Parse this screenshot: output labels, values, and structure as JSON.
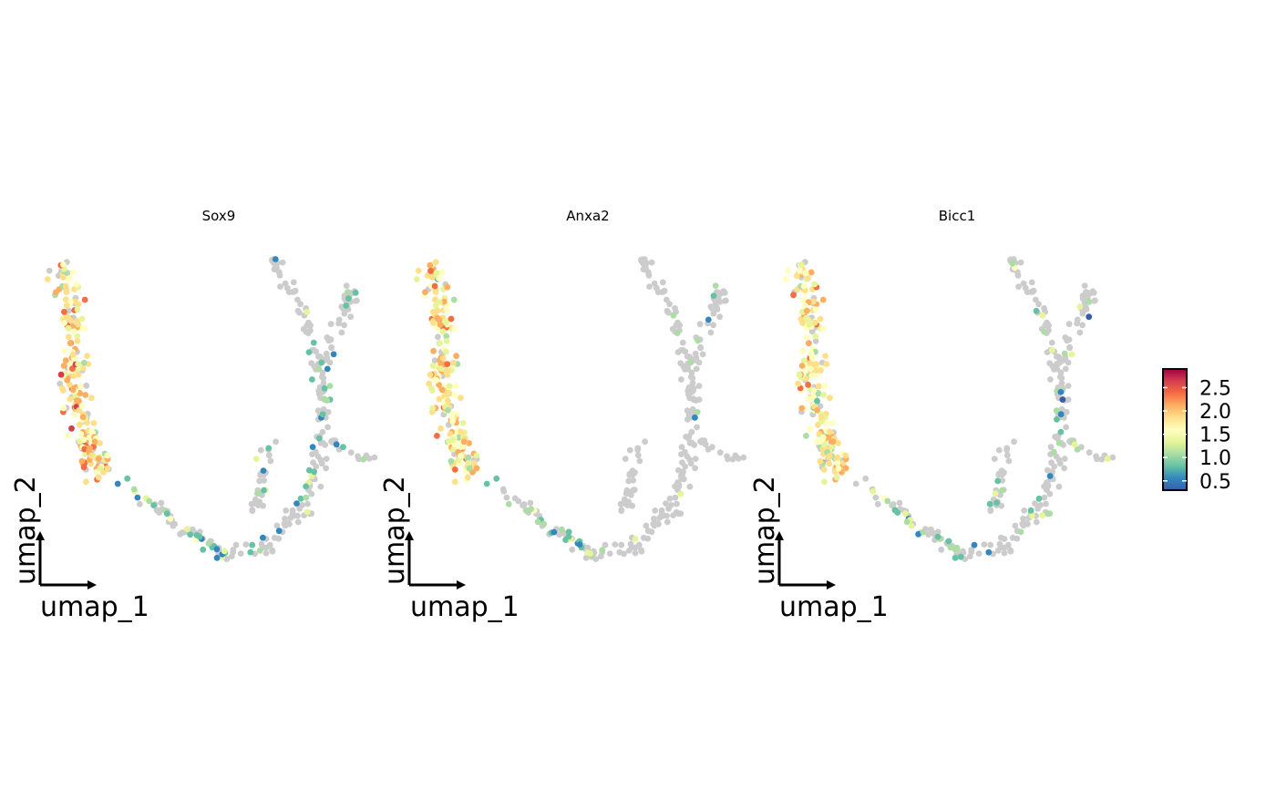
{
  "chart_data": {
    "type": "scatter",
    "panels": [
      {
        "title": "Sox9",
        "xlabel": "umap_1",
        "ylabel": "umap_2"
      },
      {
        "title": "Anxa2",
        "xlabel": "umap_1",
        "ylabel": "umap_2"
      },
      {
        "title": "Bicc1",
        "xlabel": "umap_1",
        "ylabel": "umap_2"
      }
    ],
    "colorbar": {
      "ticks": [
        "0.5",
        "1.0",
        "1.5",
        "2.0",
        "2.5"
      ],
      "range": [
        0.3,
        2.9
      ],
      "colors": [
        "#3A5DAA",
        "#3288BD",
        "#66C2A5",
        "#ABDDA4",
        "#E6F598",
        "#FFFFBF",
        "#FEE08B",
        "#FDAE61",
        "#F46D43",
        "#D53E4F",
        "#9E0142"
      ]
    },
    "background_color": "#CCCCCC",
    "grid": false
  }
}
